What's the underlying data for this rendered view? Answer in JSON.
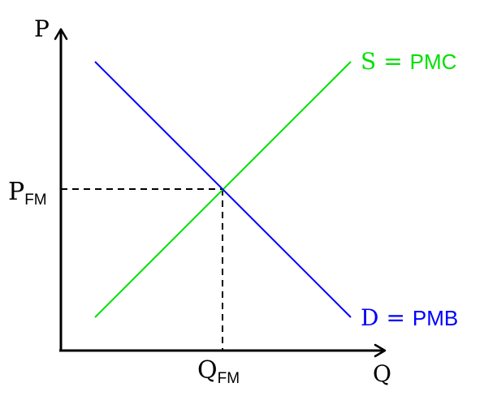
{
  "axes": {
    "y_label": "P",
    "x_label": "Q"
  },
  "equilibrium": {
    "price_label_main": "P",
    "price_label_sub": "FM",
    "quantity_label_main": "Q",
    "quantity_label_sub": "FM"
  },
  "supply": {
    "symbol": "S",
    "equals": "=",
    "name": "PMC",
    "color": "#00e000"
  },
  "demand": {
    "symbol": "D",
    "equals": "=",
    "name": "PMB",
    "color": "#0000ff"
  }
}
